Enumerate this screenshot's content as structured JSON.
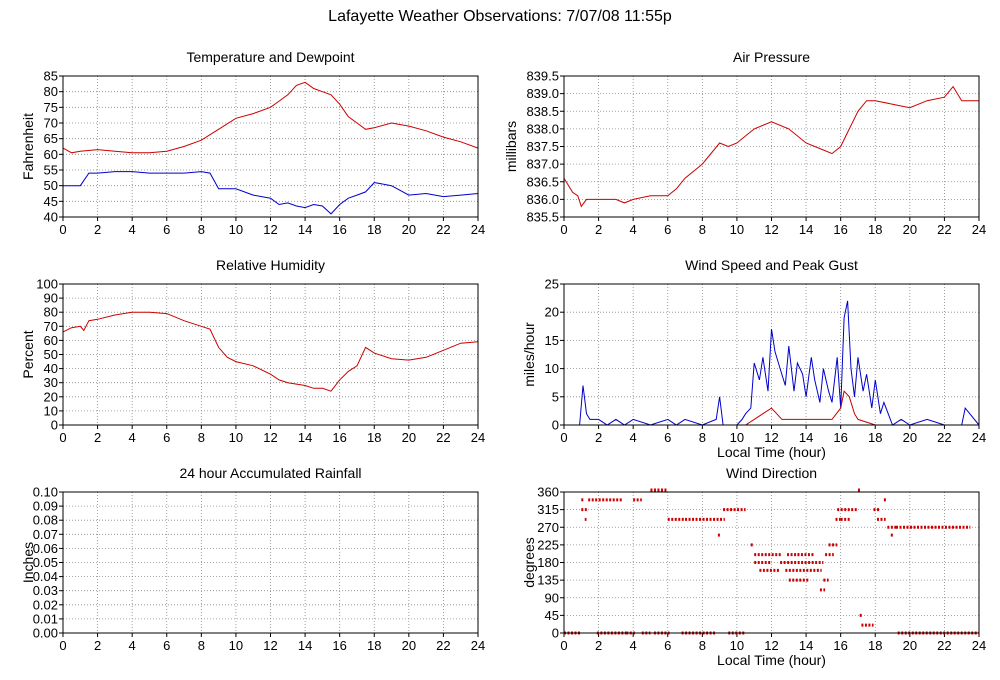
{
  "page": {
    "title": "Lafayette Weather Observations: 7/07/08 11:55p"
  },
  "colors": {
    "series_red": "#cc0000",
    "series_blue": "#0000cc",
    "grid": "#888888",
    "axes": "#000000"
  },
  "chart_data": [
    {
      "type": "line",
      "title": "Temperature and Dewpoint",
      "xlabel": "",
      "ylabel": "Fahrenheit",
      "xlim": [
        0,
        24
      ],
      "ylim": [
        40,
        85
      ],
      "x_ticks": [
        0,
        2,
        4,
        6,
        8,
        10,
        12,
        14,
        16,
        18,
        20,
        22,
        24
      ],
      "y_ticks": [
        40,
        45,
        50,
        55,
        60,
        65,
        70,
        75,
        80,
        85
      ],
      "grid": true,
      "series": [
        {
          "color": "#cc0000",
          "x": [
            0,
            0.5,
            1,
            2,
            3,
            4,
            5,
            6,
            7,
            8,
            9,
            10,
            11,
            12,
            12.5,
            13,
            13.5,
            14,
            14.5,
            15,
            15.5,
            16,
            16.5,
            17,
            17.5,
            18,
            19,
            20,
            21,
            22,
            23,
            24
          ],
          "values": [
            62,
            60.5,
            61,
            61.5,
            61,
            60.5,
            60.5,
            61,
            62.5,
            64.5,
            68,
            71.5,
            73,
            75,
            77,
            79,
            82,
            83,
            81,
            80,
            79,
            76,
            72,
            70,
            68,
            68.5,
            70,
            69,
            67.5,
            65.5,
            64,
            62
          ]
        },
        {
          "color": "#0000cc",
          "x": [
            0,
            0.5,
            1,
            1.5,
            2,
            3,
            4,
            5,
            6,
            7,
            8,
            8.5,
            9,
            10,
            11,
            12,
            12.5,
            13,
            13.5,
            14,
            14.5,
            15,
            15.5,
            16,
            16.5,
            17,
            17.5,
            18,
            19,
            20,
            21,
            22,
            23,
            24
          ],
          "values": [
            50,
            50,
            50,
            54,
            54,
            54.5,
            54.5,
            54,
            54,
            54,
            54.5,
            54,
            49,
            49,
            47,
            46,
            44,
            44.5,
            43.5,
            43,
            44,
            43.5,
            41,
            44,
            46,
            47,
            48,
            51,
            50,
            47,
            47.5,
            46.5,
            47,
            47.5
          ]
        }
      ]
    },
    {
      "type": "line",
      "title": "Air Pressure",
      "xlabel": "",
      "ylabel": "millibars",
      "xlim": [
        0,
        24
      ],
      "ylim": [
        835.5,
        839.5
      ],
      "x_ticks": [
        0,
        2,
        4,
        6,
        8,
        10,
        12,
        14,
        16,
        18,
        20,
        22,
        24
      ],
      "y_ticks": [
        835.5,
        836.0,
        836.5,
        837.0,
        837.5,
        838.0,
        838.5,
        839.0,
        839.5
      ],
      "y_tick_labels": [
        "835.5",
        "836.0",
        "836.5",
        "837.0",
        "837.5",
        "838.0",
        "838.5",
        "839.0",
        "839.5"
      ],
      "grid": true,
      "series": [
        {
          "color": "#cc0000",
          "x": [
            0,
            0.5,
            0.8,
            1,
            1.3,
            2,
            3,
            3.5,
            4,
            5,
            6,
            6.5,
            7,
            8,
            9,
            9.5,
            10,
            10.5,
            11,
            12,
            13,
            14,
            15,
            15.5,
            16,
            16.5,
            17,
            17.5,
            18,
            19,
            20,
            21,
            22,
            22.5,
            23,
            24
          ],
          "values": [
            836.6,
            836.2,
            836.1,
            835.8,
            836.0,
            836.0,
            836.0,
            835.9,
            836.0,
            836.1,
            836.1,
            836.3,
            836.6,
            837.0,
            837.6,
            837.5,
            837.6,
            837.8,
            838.0,
            838.2,
            838.0,
            837.6,
            837.4,
            837.3,
            837.5,
            838.0,
            838.5,
            838.8,
            838.8,
            838.7,
            838.6,
            838.8,
            838.9,
            839.2,
            838.8,
            838.8
          ]
        }
      ]
    },
    {
      "type": "line",
      "title": "Relative Humidity",
      "xlabel": "",
      "ylabel": "Percent",
      "xlim": [
        0,
        24
      ],
      "ylim": [
        0,
        100
      ],
      "x_ticks": [
        0,
        2,
        4,
        6,
        8,
        10,
        12,
        14,
        16,
        18,
        20,
        22,
        24
      ],
      "y_ticks": [
        0,
        10,
        20,
        30,
        40,
        50,
        60,
        70,
        80,
        90,
        100
      ],
      "grid": true,
      "series": [
        {
          "color": "#cc0000",
          "x": [
            0,
            0.5,
            1,
            1.2,
            1.5,
            2,
            3,
            4,
            5,
            6,
            7,
            8,
            8.5,
            9,
            9.5,
            10,
            11,
            12,
            12.5,
            13,
            14,
            14.5,
            15,
            15.5,
            16,
            16.5,
            17,
            17.5,
            18,
            19,
            20,
            21,
            22,
            23,
            24
          ],
          "values": [
            66,
            69,
            70,
            67,
            74,
            75,
            78,
            80,
            80,
            79,
            74,
            70,
            68,
            55,
            48,
            45,
            42,
            36,
            32,
            30,
            28,
            26,
            26,
            24,
            32,
            38,
            42,
            55,
            51,
            47,
            46,
            48,
            53,
            58,
            59
          ]
        }
      ]
    },
    {
      "type": "line",
      "title": "Wind Speed and Peak Gust",
      "xlabel": "Local Time (hour)",
      "ylabel": "miles/hour",
      "xlim": [
        0,
        24
      ],
      "ylim": [
        0,
        25
      ],
      "x_ticks": [
        0,
        2,
        4,
        6,
        8,
        10,
        12,
        14,
        16,
        18,
        20,
        22,
        24
      ],
      "y_ticks": [
        0,
        5,
        10,
        15,
        20,
        25
      ],
      "grid": true,
      "series": [
        {
          "color": "#0000cc",
          "x": [
            0,
            0.9,
            1.1,
            1.3,
            1.5,
            2,
            2.5,
            3,
            3.5,
            4,
            5,
            6,
            6.5,
            7,
            8,
            8.8,
            9,
            9.2,
            10,
            10.3,
            10.5,
            10.8,
            11,
            11.3,
            11.5,
            11.8,
            12,
            12.2,
            12.5,
            12.8,
            13,
            13.3,
            13.5,
            13.8,
            14,
            14.3,
            14.5,
            14.8,
            15,
            15.3,
            15.5,
            15.8,
            16,
            16.2,
            16.4,
            16.6,
            16.8,
            17,
            17.3,
            17.5,
            17.8,
            18,
            18.3,
            18.5,
            19,
            19.5,
            20,
            21,
            22,
            23,
            23.2,
            24
          ],
          "values": [
            0,
            0,
            7,
            2,
            1,
            1,
            0,
            1,
            0,
            1,
            0,
            1,
            0,
            1,
            0,
            1,
            5,
            0,
            0,
            1,
            2,
            3,
            11,
            8,
            12,
            6,
            17,
            13,
            10,
            7,
            14,
            6,
            11,
            9,
            5,
            12,
            8,
            4,
            10,
            6,
            4,
            12,
            3,
            19,
            22,
            10,
            5,
            12,
            6,
            9,
            3,
            8,
            2,
            4,
            0,
            1,
            0,
            1,
            0,
            0,
            3,
            0
          ]
        },
        {
          "color": "#cc0000",
          "x": [
            0,
            10,
            10.5,
            11,
            11.5,
            12,
            12.3,
            12.6,
            13,
            14,
            15,
            15.5,
            16,
            16.2,
            16.5,
            16.8,
            17,
            18,
            24
          ],
          "values": [
            0,
            0,
            0,
            1,
            2,
            3,
            2,
            1,
            1,
            1,
            1,
            1,
            3,
            6,
            5,
            2,
            1,
            0,
            0
          ]
        }
      ]
    },
    {
      "type": "line",
      "title": "24 hour Accumulated Rainfall",
      "xlabel": "",
      "ylabel": "Inches",
      "xlim": [
        0,
        24
      ],
      "ylim": [
        0,
        0.1
      ],
      "x_ticks": [
        0,
        2,
        4,
        6,
        8,
        10,
        12,
        14,
        16,
        18,
        20,
        22,
        24
      ],
      "y_ticks": [
        0,
        0.01,
        0.02,
        0.03,
        0.04,
        0.05,
        0.06,
        0.07,
        0.08,
        0.09,
        0.1
      ],
      "y_tick_labels": [
        "0.00",
        "0.01",
        "0.02",
        "0.03",
        "0.04",
        "0.05",
        "0.06",
        "0.07",
        "0.08",
        "0.09",
        "0.10"
      ],
      "grid": true,
      "series": [
        {
          "color": "#cc0000",
          "x": [
            0,
            24
          ],
          "values": [
            0,
            0
          ]
        }
      ]
    },
    {
      "type": "scatter",
      "title": "Wind Direction",
      "xlabel": "Local Time (hour)",
      "ylabel": "degrees",
      "xlim": [
        0,
        24
      ],
      "ylim": [
        0,
        360
      ],
      "x_ticks": [
        0,
        2,
        4,
        6,
        8,
        10,
        12,
        14,
        16,
        18,
        20,
        22,
        24
      ],
      "y_ticks": [
        0,
        45,
        90,
        135,
        180,
        225,
        270,
        315,
        360
      ],
      "grid": true,
      "series": [
        {
          "color": "#cc0000",
          "segments": [
            {
              "x0": 0,
              "x1": 1,
              "y": 0
            },
            {
              "x0": 1,
              "x1": 1.4,
              "y": 315
            },
            {
              "x0": 1.2,
              "x1": 1.3,
              "y": 290
            },
            {
              "x0": 1.4,
              "x1": 3.4,
              "y": 340
            },
            {
              "x0": 1,
              "x1": 1.2,
              "y": 340
            },
            {
              "x0": 1.9,
              "x1": 3.6,
              "y": 0
            },
            {
              "x0": 3.6,
              "x1": 4.1,
              "y": 0
            },
            {
              "x0": 4,
              "x1": 4.5,
              "y": 340
            },
            {
              "x0": 4.5,
              "x1": 5,
              "y": 0
            },
            {
              "x0": 5,
              "x1": 6,
              "y": 365
            },
            {
              "x0": 5.2,
              "x1": 6.1,
              "y": 0
            },
            {
              "x0": 6,
              "x1": 7,
              "y": 290
            },
            {
              "x0": 6.8,
              "x1": 8.8,
              "y": 0
            },
            {
              "x0": 7,
              "x1": 9.3,
              "y": 290
            },
            {
              "x0": 8.9,
              "x1": 9.1,
              "y": 250
            },
            {
              "x0": 9.2,
              "x1": 10.5,
              "y": 315
            },
            {
              "x0": 9.5,
              "x1": 10.5,
              "y": 0
            },
            {
              "x0": 10.8,
              "x1": 11,
              "y": 225
            },
            {
              "x0": 11,
              "x1": 12.6,
              "y": 200
            },
            {
              "x0": 11,
              "x1": 12,
              "y": 180
            },
            {
              "x0": 11.3,
              "x1": 12.5,
              "y": 160
            },
            {
              "x0": 12.5,
              "x1": 15,
              "y": 180
            },
            {
              "x0": 12.8,
              "x1": 14.9,
              "y": 160
            },
            {
              "x0": 12.9,
              "x1": 13.6,
              "y": 200
            },
            {
              "x0": 13,
              "x1": 14.2,
              "y": 135
            },
            {
              "x0": 13.5,
              "x1": 14.5,
              "y": 200
            },
            {
              "x0": 14.8,
              "x1": 15.1,
              "y": 110
            },
            {
              "x0": 15,
              "x1": 15.3,
              "y": 135
            },
            {
              "x0": 15.1,
              "x1": 15.6,
              "y": 200
            },
            {
              "x0": 15.3,
              "x1": 15.8,
              "y": 225
            },
            {
              "x0": 15.7,
              "x1": 16,
              "y": 290
            },
            {
              "x0": 15.8,
              "x1": 17,
              "y": 315
            },
            {
              "x0": 16,
              "x1": 16.6,
              "y": 290
            },
            {
              "x0": 17,
              "x1": 17.2,
              "y": 365
            },
            {
              "x0": 17.1,
              "x1": 17.3,
              "y": 45
            },
            {
              "x0": 17.2,
              "x1": 17.9,
              "y": 20
            },
            {
              "x0": 17.9,
              "x1": 18.3,
              "y": 315
            },
            {
              "x0": 18.1,
              "x1": 18.6,
              "y": 290
            },
            {
              "x0": 18.5,
              "x1": 18.7,
              "y": 340
            },
            {
              "x0": 18.7,
              "x1": 19.2,
              "y": 270
            },
            {
              "x0": 18.9,
              "x1": 19.1,
              "y": 250
            },
            {
              "x0": 19.2,
              "x1": 23.5,
              "y": 270
            },
            {
              "x0": 19.3,
              "x1": 24,
              "y": 0
            }
          ]
        }
      ]
    }
  ]
}
